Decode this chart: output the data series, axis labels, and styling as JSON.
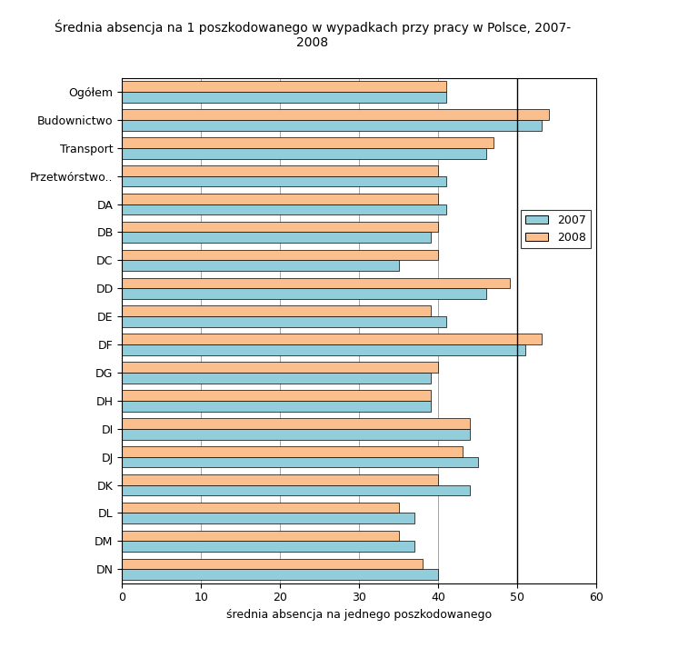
{
  "title": "Średnia absencja na 1 poszkodowanego w wypadkach przy pracy w Polsce, 2007-\n2008",
  "xlabel": "średnia absencja na jednego poszkodowanego",
  "categories": [
    "Ogółem",
    "Budownictwo",
    "Transport",
    "Przetwórstwo..",
    "DA",
    "DB",
    "DC",
    "DD",
    "DE",
    "DF",
    "DG",
    "DH",
    "DI",
    "DJ",
    "DK",
    "DL",
    "DM",
    "DN"
  ],
  "values_2007": [
    41,
    53,
    46,
    41,
    41,
    39,
    35,
    46,
    41,
    51,
    39,
    39,
    44,
    45,
    44,
    37,
    37,
    40
  ],
  "values_2008": [
    41,
    54,
    47,
    40,
    40,
    40,
    40,
    49,
    39,
    53,
    40,
    39,
    44,
    43,
    40,
    35,
    35,
    38
  ],
  "color_2007": "#92CDDC",
  "color_2008": "#FBBF8E",
  "xlim": [
    0,
    60
  ],
  "xticks": [
    0,
    10,
    20,
    30,
    40,
    50,
    60
  ],
  "legend_labels": [
    "2007",
    "2008"
  ],
  "vline_x": 50,
  "bar_height": 0.38,
  "title_fontsize": 10,
  "axis_fontsize": 9,
  "tick_fontsize": 9,
  "figsize": [
    7.46,
    7.13
  ],
  "dpi": 100
}
